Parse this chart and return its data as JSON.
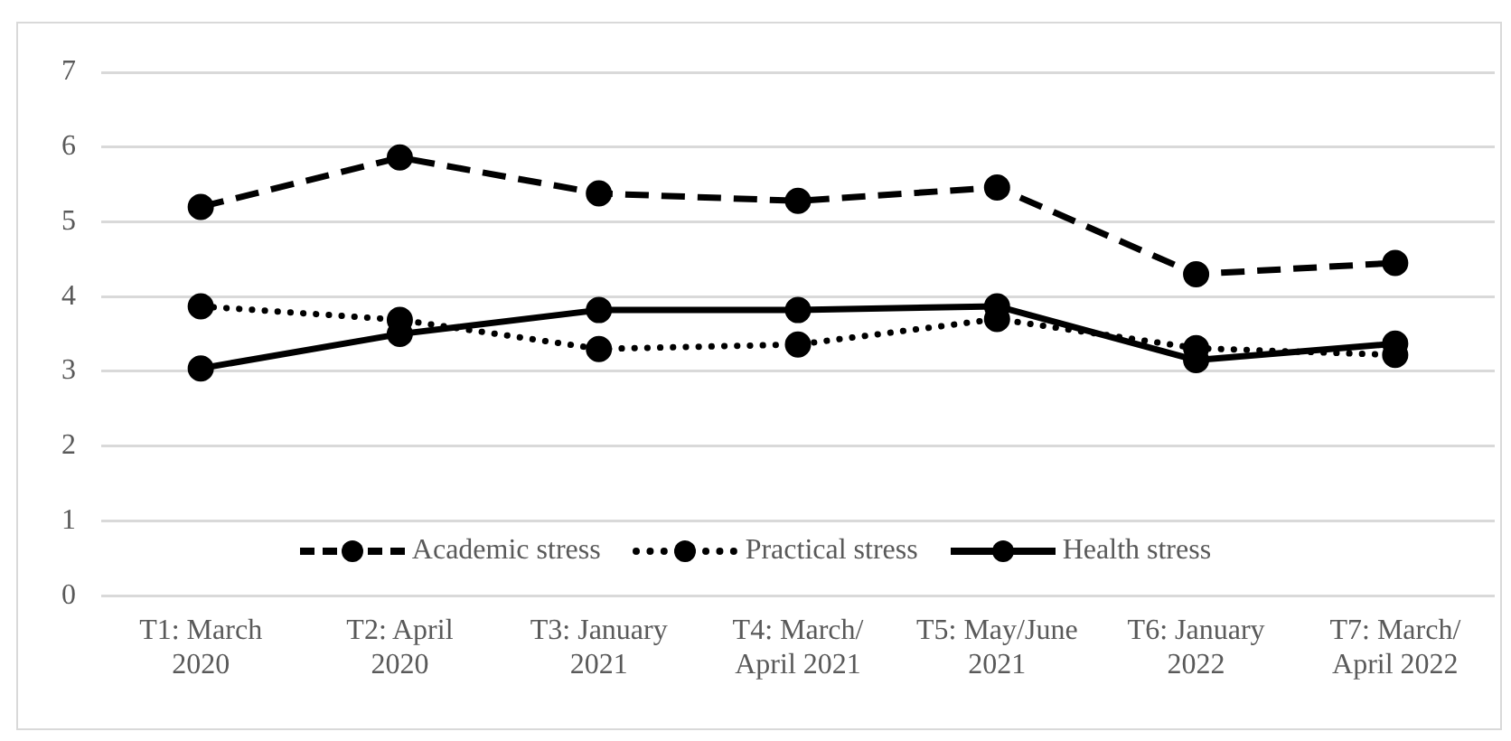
{
  "chart_data": {
    "type": "line",
    "categories": [
      "T1: March 2020",
      "T2: April 2020",
      "T3: January 2021",
      "T4: March/ April 2021",
      "T5: May/June 2021",
      "T6: January 2022",
      "T7: March/ April 2022"
    ],
    "series": [
      {
        "name": "Academic stress",
        "color": "#000000",
        "line_style": "dashed",
        "values": [
          5.2,
          5.86,
          5.38,
          5.28,
          5.46,
          4.3,
          4.45
        ]
      },
      {
        "name": "Practical stress",
        "color": "#000000",
        "line_style": "dotted",
        "values": [
          3.87,
          3.69,
          3.3,
          3.36,
          3.7,
          3.31,
          3.22
        ]
      },
      {
        "name": "Health stress",
        "color": "#000000",
        "line_style": "solid",
        "values": [
          3.04,
          3.5,
          3.82,
          3.82,
          3.87,
          3.15,
          3.37
        ]
      }
    ],
    "ylim": [
      0,
      7
    ],
    "yticks": [
      0,
      1,
      2,
      3,
      4,
      5,
      6,
      7
    ],
    "grid": "y",
    "legend": "bottom",
    "marker": "circle"
  }
}
